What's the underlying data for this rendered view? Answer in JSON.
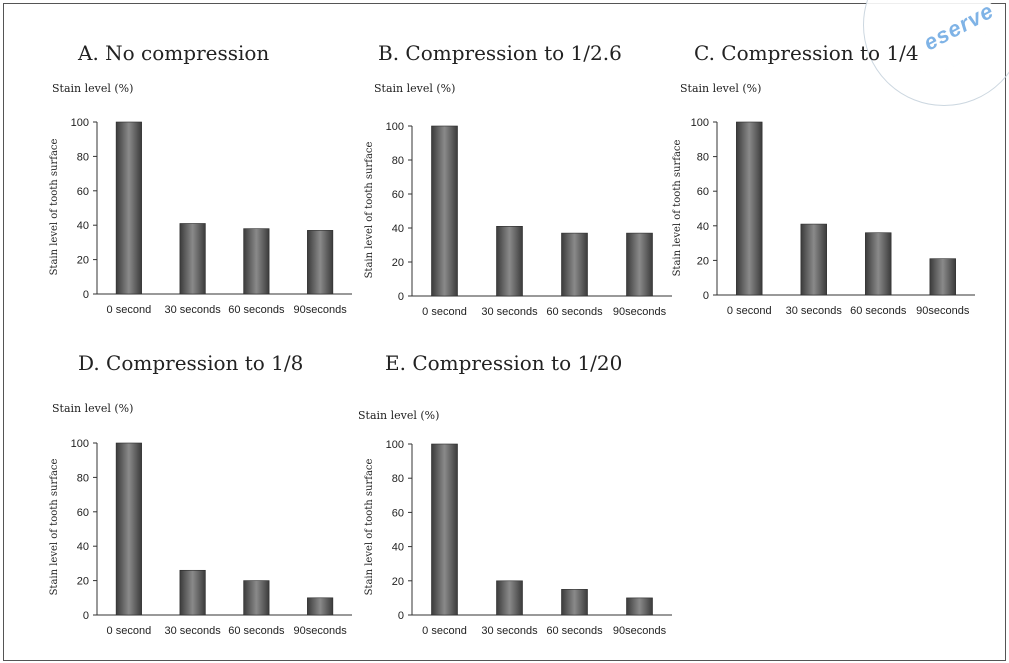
{
  "watermark": {
    "text": "eserve"
  },
  "colors": {
    "bar_dark": "#3b3b3b",
    "bar_light": "#8a8a8a",
    "axis": "#333333"
  },
  "panel_common": {
    "stain_label": "Stain level (%)",
    "ylabel": "Stain level of tooth surface",
    "yticks": [
      "0",
      "20",
      "40",
      "60",
      "80",
      "100"
    ]
  },
  "chart_data": [
    {
      "type": "bar",
      "title": "A.  No compression",
      "ylabel": "Stain level of tooth surface",
      "ylim": [
        0,
        100
      ],
      "categories": [
        "0 second",
        "30 seconds",
        "60 seconds",
        "90seconds"
      ],
      "values": [
        100,
        41,
        38,
        37
      ]
    },
    {
      "type": "bar",
      "title": "B. Compression to 1/2.6",
      "ylabel": "Stain level of tooth surface",
      "ylim": [
        0,
        100
      ],
      "categories": [
        "0 second",
        "30 seconds",
        "60 seconds",
        "90seconds"
      ],
      "values": [
        100,
        41,
        37,
        37
      ]
    },
    {
      "type": "bar",
      "title": "C. Compression to 1/4",
      "ylabel": "Stain level of tooth surface",
      "ylim": [
        0,
        100
      ],
      "categories": [
        "0 second",
        "30 seconds",
        "60 seconds",
        "90seconds"
      ],
      "values": [
        100,
        41,
        36,
        21
      ]
    },
    {
      "type": "bar",
      "title": "D. Compression to 1/8",
      "ylabel": "Stain level of tooth surface",
      "ylim": [
        0,
        100
      ],
      "categories": [
        "0 second",
        "30 seconds",
        "60 seconds",
        "90seconds"
      ],
      "values": [
        100,
        26,
        20,
        10
      ]
    },
    {
      "type": "bar",
      "title": "E. Compression to 1/20",
      "ylabel": "Stain level of tooth surface",
      "ylim": [
        0,
        100
      ],
      "categories": [
        "0 second",
        "30 seconds",
        "60 seconds",
        "90seconds"
      ],
      "values": [
        100,
        20,
        15,
        10
      ]
    }
  ]
}
